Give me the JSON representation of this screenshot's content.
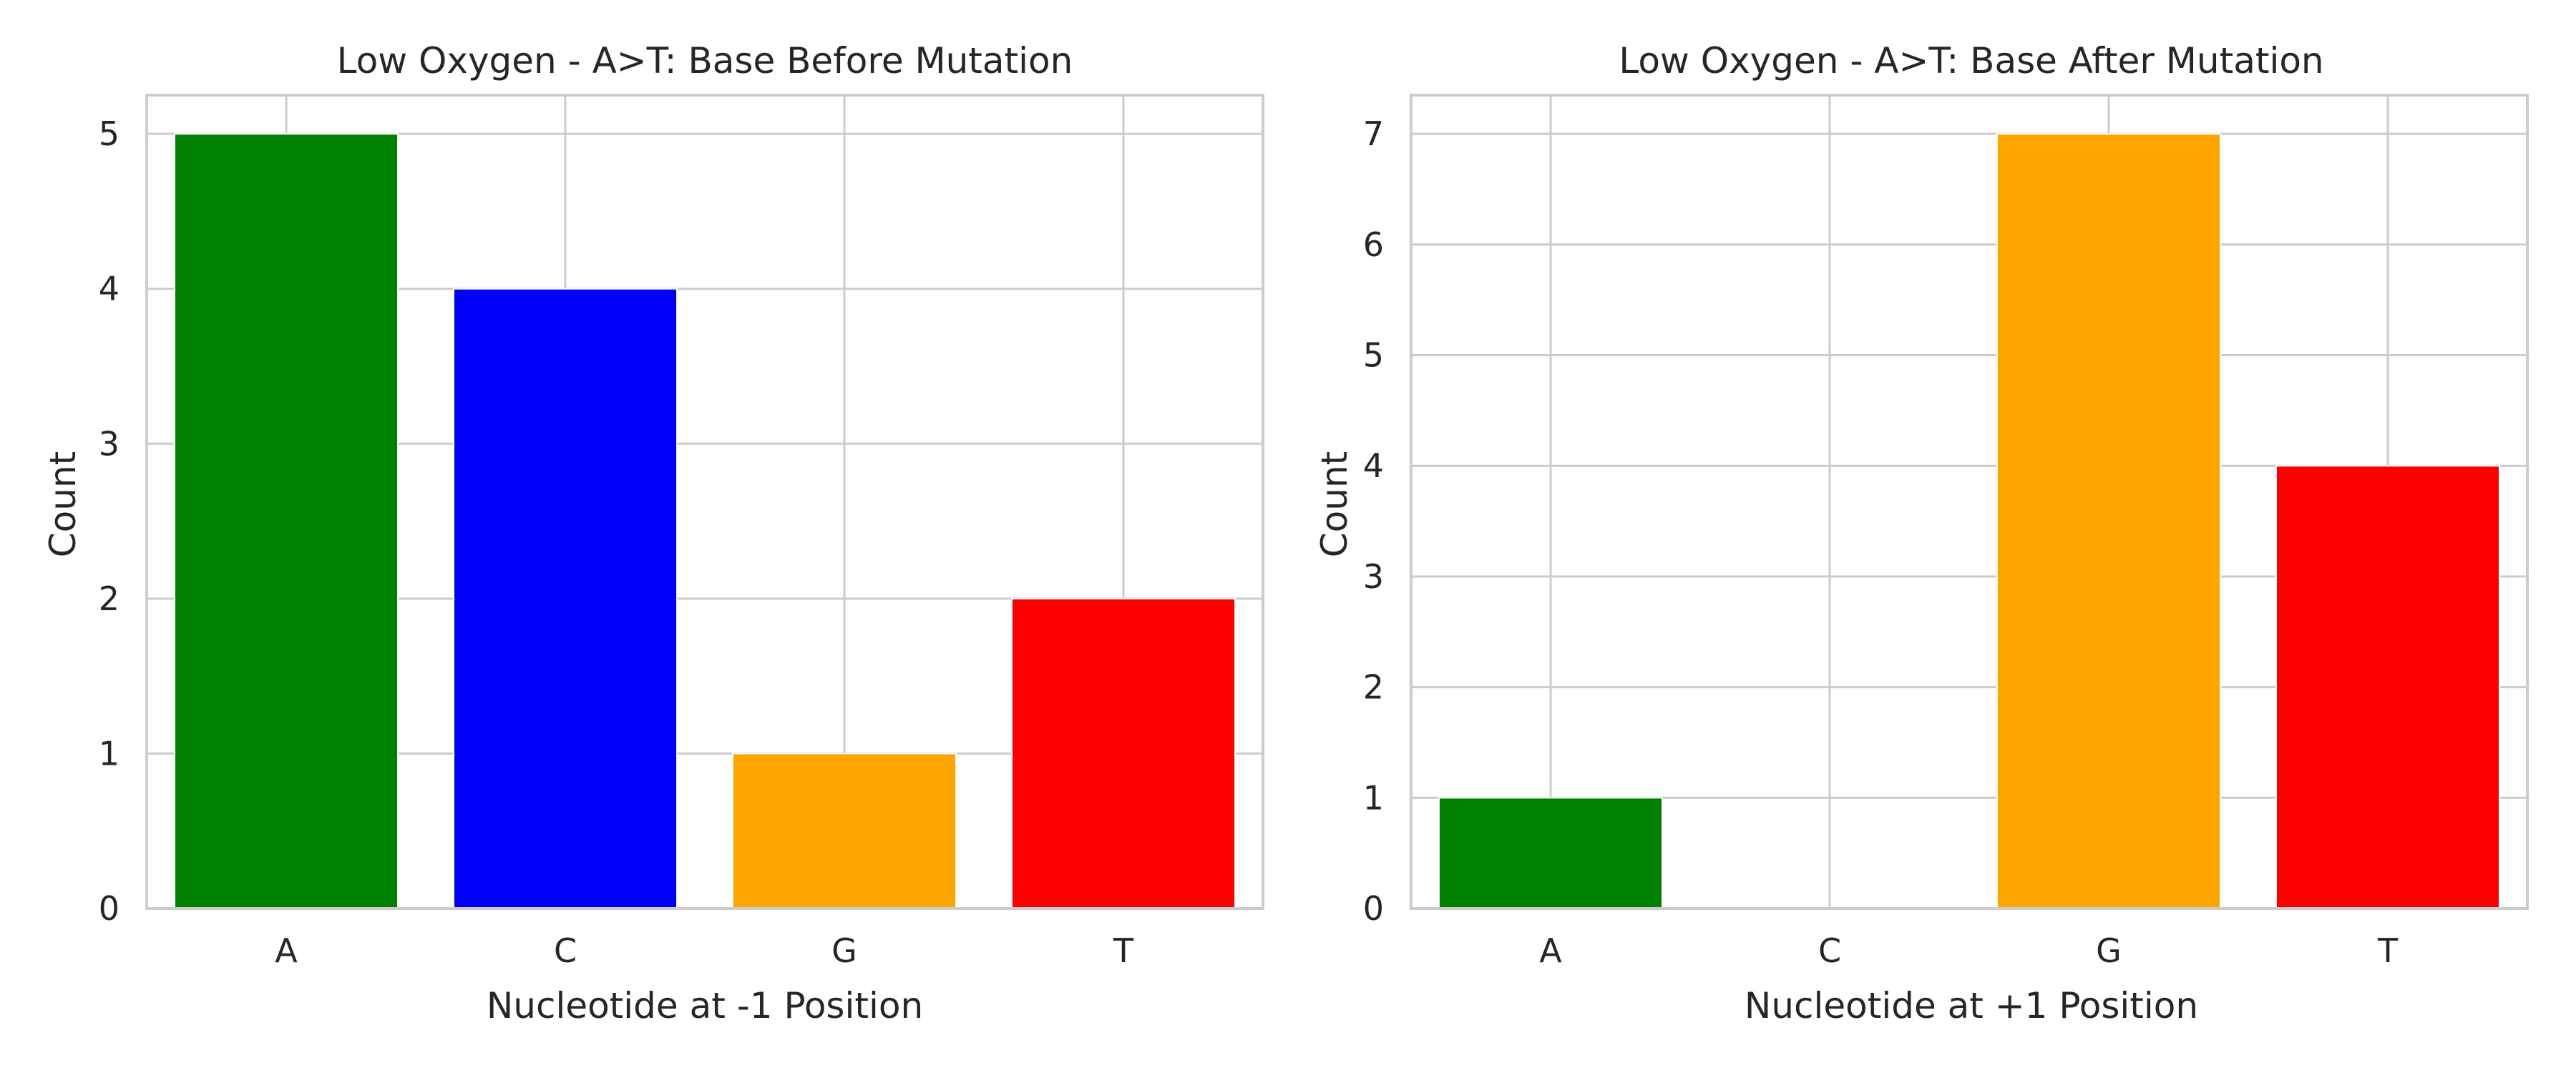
{
  "chart_data": [
    {
      "type": "bar",
      "title": "Low Oxygen - A>T: Base Before Mutation",
      "xlabel": "Nucleotide at -1 Position",
      "ylabel": "Count",
      "categories": [
        "A",
        "C",
        "G",
        "T"
      ],
      "values": [
        5,
        4,
        1,
        2
      ],
      "colors": [
        "#008000",
        "#0000ff",
        "#ffa500",
        "#ff0000"
      ],
      "ylim": [
        0,
        5.25
      ],
      "yticks": [
        0,
        1,
        2,
        3,
        4,
        5
      ],
      "grid": true,
      "style": {
        "background": "#ffffff",
        "grid_color": "#cccccc",
        "spine_color": "#cccccc"
      }
    },
    {
      "type": "bar",
      "title": "Low Oxygen - A>T: Base After Mutation",
      "xlabel": "Nucleotide at +1 Position",
      "ylabel": "Count",
      "categories": [
        "A",
        "C",
        "G",
        "T"
      ],
      "values": [
        1,
        0,
        7,
        4
      ],
      "colors": [
        "#008000",
        "#0000ff",
        "#ffa500",
        "#ff0000"
      ],
      "ylim": [
        0,
        7.35
      ],
      "yticks": [
        0,
        1,
        2,
        3,
        4,
        5,
        6,
        7
      ],
      "grid": true,
      "style": {
        "background": "#ffffff",
        "grid_color": "#cccccc",
        "spine_color": "#cccccc"
      }
    }
  ]
}
